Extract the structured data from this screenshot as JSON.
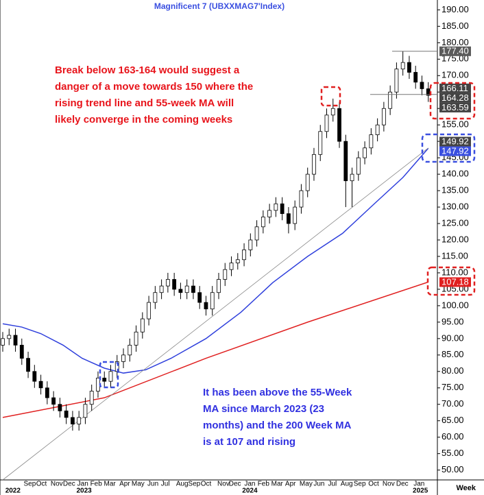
{
  "chart_data": {
    "type": "candlestick",
    "title": "Magnificent  7  (UBXXMAG7'Index)",
    "x_axis_label": "Week",
    "x": [
      0,
      2,
      4,
      6,
      8,
      10,
      12,
      14,
      16,
      18,
      20,
      22,
      24,
      26,
      28,
      30,
      32,
      34,
      36,
      38,
      40,
      42,
      44,
      46,
      48,
      50,
      52,
      54,
      56,
      58,
      60,
      62,
      64,
      66,
      68,
      70,
      72,
      74,
      76,
      78,
      80,
      82,
      84,
      86,
      88,
      90,
      92,
      94,
      96,
      98,
      100,
      102,
      104,
      106,
      108,
      110,
      112,
      114,
      116,
      118,
      120,
      122,
      124,
      126,
      128,
      130,
      132,
      134
    ],
    "open": [
      88,
      90,
      91,
      88,
      84,
      80,
      77,
      75,
      72,
      70,
      68,
      66,
      64,
      66,
      70,
      74,
      78,
      77,
      80,
      83,
      85,
      88,
      92,
      96,
      101,
      104,
      106,
      108,
      105,
      104,
      106,
      104,
      101,
      99,
      104,
      108,
      111,
      113,
      114,
      117,
      120,
      124,
      127,
      129,
      131,
      128,
      125,
      130,
      135,
      140,
      146,
      153,
      158,
      160,
      150,
      138,
      140,
      145,
      148,
      152,
      155,
      160,
      165,
      172,
      174,
      171,
      168,
      166
    ],
    "high": [
      92,
      93,
      93,
      90,
      86,
      82,
      79,
      77,
      74,
      72,
      70,
      68,
      68,
      72,
      76,
      80,
      80,
      82,
      85,
      87,
      90,
      94,
      98,
      103,
      106,
      108,
      110,
      110,
      107,
      108,
      108,
      106,
      103,
      106,
      110,
      113,
      115,
      116,
      119,
      122,
      126,
      129,
      131,
      133,
      133,
      130,
      132,
      137,
      142,
      148,
      155,
      160,
      163,
      162,
      152,
      142,
      147,
      150,
      154,
      157,
      162,
      167,
      174,
      177.4,
      176,
      173,
      170,
      168
    ],
    "low": [
      86,
      88,
      86,
      82,
      78,
      75,
      73,
      70,
      68,
      66,
      64,
      62,
      62,
      64,
      68,
      72,
      75,
      75,
      78,
      81,
      83,
      86,
      90,
      94,
      99,
      102,
      104,
      103,
      102,
      102,
      102,
      99,
      97,
      97,
      102,
      106,
      109,
      111,
      112,
      115,
      118,
      122,
      125,
      127,
      126,
      122,
      123,
      128,
      133,
      138,
      144,
      151,
      156,
      148,
      130,
      130,
      138,
      143,
      146,
      150,
      153,
      158,
      163,
      170,
      169,
      166,
      164,
      162
    ],
    "close": [
      90,
      91,
      88,
      84,
      80,
      77,
      75,
      72,
      70,
      68,
      66,
      64,
      66,
      70,
      74,
      78,
      77,
      80,
      83,
      85,
      88,
      92,
      96,
      101,
      104,
      106,
      108,
      105,
      104,
      106,
      104,
      101,
      99,
      104,
      108,
      111,
      113,
      114,
      117,
      120,
      124,
      127,
      129,
      131,
      128,
      125,
      130,
      135,
      140,
      146,
      153,
      158,
      160,
      150,
      138,
      140,
      145,
      148,
      152,
      155,
      160,
      165,
      172,
      174,
      171,
      168,
      166,
      164
    ],
    "up_color": "#ffffff",
    "down_color": "#000000",
    "lines": [
      {
        "color": "#2e3fdc",
        "x": [
          0,
          6,
          12,
          19,
          25,
          32,
          38,
          45,
          53,
          64,
          75,
          85,
          96,
          107,
          117,
          126,
          134
        ],
        "values": [
          94.5,
          93.5,
          91.5,
          88,
          84,
          81,
          79.5,
          80.5,
          84,
          90,
          98,
          107,
          115,
          122,
          131,
          139,
          147.9
        ]
      },
      {
        "color": "#e02020",
        "x": [
          0,
          32,
          64,
          96,
          134
        ],
        "values": [
          66,
          72,
          84,
          95,
          107.2
        ]
      },
      {
        "color": "#888888",
        "x": [
          0,
          134
        ],
        "values": [
          47,
          148
        ]
      }
    ],
    "xlim": [
      0,
      136
    ],
    "ylim": [
      47,
      193
    ],
    "yticks": [
      {
        "value": 190,
        "label": "190.00"
      },
      {
        "value": 185,
        "label": "185.00"
      },
      {
        "value": 180,
        "label": "180.00"
      },
      {
        "value": 175,
        "label": "175.00"
      },
      {
        "value": 170,
        "label": "170.00"
      },
      {
        "value": 165,
        "label": "165.00"
      },
      {
        "value": 160,
        "label": "160.00"
      },
      {
        "value": 155,
        "label": "155.00"
      },
      {
        "value": 150,
        "label": "150.00"
      },
      {
        "value": 145,
        "label": "145.00"
      },
      {
        "value": 140,
        "label": "140.00"
      },
      {
        "value": 135,
        "label": "135.00"
      },
      {
        "value": 130,
        "label": "130.00"
      },
      {
        "value": 125,
        "label": "125.00"
      },
      {
        "value": 120,
        "label": "120.00"
      },
      {
        "value": 115,
        "label": "115.00"
      },
      {
        "value": 110,
        "label": "110.00"
      },
      {
        "value": 105,
        "label": "105.00"
      },
      {
        "value": 100,
        "label": "100.00"
      },
      {
        "value": 95,
        "label": "95.00"
      },
      {
        "value": 90,
        "label": "90.00"
      },
      {
        "value": 85,
        "label": "85.00"
      },
      {
        "value": 80,
        "label": "80.00"
      },
      {
        "value": 75,
        "label": "75.00"
      },
      {
        "value": 70,
        "label": "70.00"
      },
      {
        "value": 65,
        "label": "65.00"
      },
      {
        "value": 60,
        "label": "60.00"
      },
      {
        "value": 55,
        "label": "55.00"
      },
      {
        "value": 50,
        "label": "50.00"
      }
    ],
    "xticks": [
      {
        "value": 8.5,
        "label": "Sep"
      },
      {
        "value": 12.2,
        "label": "Oct"
      },
      {
        "value": 17,
        "label": "Nov"
      },
      {
        "value": 20.9,
        "label": "Dec"
      },
      {
        "value": 25.2,
        "label": "Jan"
      },
      {
        "value": 29.4,
        "label": "Feb"
      },
      {
        "value": 33.7,
        "label": "Mar"
      },
      {
        "value": 38.4,
        "label": "Apr"
      },
      {
        "value": 42.6,
        "label": "May"
      },
      {
        "value": 47.3,
        "label": "Jun"
      },
      {
        "value": 51.2,
        "label": "Jul"
      },
      {
        "value": 56.5,
        "label": "Aug"
      },
      {
        "value": 60.3,
        "label": "Sep"
      },
      {
        "value": 64,
        "label": "Oct"
      },
      {
        "value": 69.5,
        "label": "Nov"
      },
      {
        "value": 73.1,
        "label": "Dec"
      },
      {
        "value": 77.8,
        "label": "Jan"
      },
      {
        "value": 82.1,
        "label": "Feb"
      },
      {
        "value": 86.4,
        "label": "Mar"
      },
      {
        "value": 90.6,
        "label": "Apr"
      },
      {
        "value": 95.5,
        "label": "May"
      },
      {
        "value": 99.6,
        "label": "Jun"
      },
      {
        "value": 103.8,
        "label": "Jul"
      },
      {
        "value": 108.3,
        "label": "Aug"
      },
      {
        "value": 112.4,
        "label": "Sep"
      },
      {
        "value": 116.8,
        "label": "Oct"
      },
      {
        "value": 121.5,
        "label": "Nov"
      },
      {
        "value": 125.8,
        "label": "Dec"
      },
      {
        "value": 131.1,
        "label": "Jan"
      }
    ],
    "year_ticks": [
      {
        "value": 3.2,
        "label": "2022"
      },
      {
        "value": 25.6,
        "label": "2023"
      },
      {
        "value": 77.8,
        "label": "2024"
      },
      {
        "value": 131.5,
        "label": "2025"
      }
    ],
    "price_labels": [
      {
        "value": 177.4,
        "label": "177.40",
        "color": "#5a5a5a"
      },
      {
        "value": 166.11,
        "label": "166.11",
        "color": "#444444"
      },
      {
        "value": 164.28,
        "label": "164.28",
        "color": "#444444"
      },
      {
        "value": 163.59,
        "label": "163.59",
        "color": "#444444"
      },
      {
        "value": 149.92,
        "label": "149.92",
        "color": "#444444"
      },
      {
        "value": 147.92,
        "label": "147.92",
        "color": "#3a4fe0"
      },
      {
        "value": 107.18,
        "label": "107.18",
        "color": "#e02020"
      }
    ],
    "annotations": [
      {
        "color": "#e8141b",
        "lines": [
          "Break below 163-164 would suggest a",
          "danger of a move towards 150 where the",
          "rising trend line and 55-week MA will",
          "likely converge in the coming weeks"
        ]
      },
      {
        "color": "#3030e0",
        "lines": [
          "It has been above the 55-Week",
          "MA since March 2023 (23",
          "months) and the 200 Week MA",
          "is at 107 and rising"
        ]
      }
    ]
  }
}
